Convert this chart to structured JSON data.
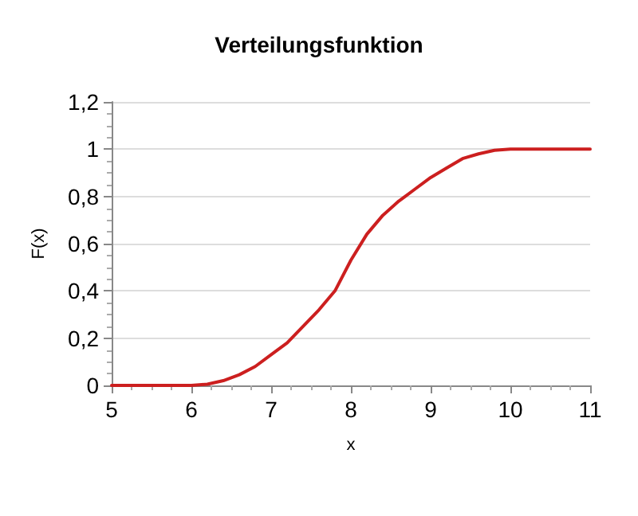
{
  "chart_data": {
    "type": "line",
    "title": "Verteilungsfunktion",
    "xlabel": "x",
    "ylabel": "F(x)",
    "x": [
      5,
      5.5,
      6,
      6.2,
      6.4,
      6.6,
      6.8,
      7,
      7.2,
      7.4,
      7.6,
      7.8,
      8,
      8.2,
      8.4,
      8.6,
      8.8,
      9,
      9.2,
      9.4,
      9.6,
      9.8,
      10,
      10.5,
      11
    ],
    "series": [
      {
        "color": "#cc1f1f",
        "values": [
          0,
          0,
          0,
          0.005,
          0.02,
          0.045,
          0.08,
          0.13,
          0.18,
          0.25,
          0.32,
          0.4,
          0.53,
          0.64,
          0.72,
          0.78,
          0.83,
          0.88,
          0.92,
          0.96,
          0.98,
          0.995,
          1,
          1,
          1
        ]
      }
    ],
    "xlim": [
      5,
      11
    ],
    "xticks": [
      5,
      6,
      7,
      8,
      9,
      10,
      11
    ],
    "ylim": [
      0,
      1.2
    ],
    "yticks": [
      {
        "value": 0,
        "label": "0"
      },
      {
        "value": 0.2,
        "label": "0,2"
      },
      {
        "value": 0.4,
        "label": "0,4"
      },
      {
        "value": 0.6,
        "label": "0,6"
      },
      {
        "value": 0.8,
        "label": "0,8"
      },
      {
        "value": 1,
        "label": "1"
      },
      {
        "value": 1.2,
        "label": "1,2"
      }
    ],
    "grid": "y",
    "marker": "none",
    "line_style": "solid"
  }
}
